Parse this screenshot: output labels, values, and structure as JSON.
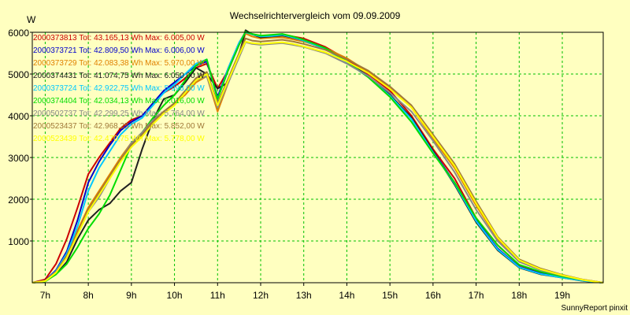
{
  "chart_data": {
    "type": "line",
    "title": "Wechselrichtervergleich vom 09.09.2009",
    "ylabel": "W",
    "xlabel": "",
    "xlim": [
      6.7,
      19.95
    ],
    "ylim": [
      0,
      6000
    ],
    "x_ticks": [
      7,
      8,
      9,
      10,
      11,
      12,
      13,
      14,
      15,
      16,
      17,
      18,
      19
    ],
    "x_tick_labels": [
      "7h",
      "8h",
      "9h",
      "10h",
      "11h",
      "12h",
      "13h",
      "14h",
      "15h",
      "16h",
      "17h",
      "18h",
      "19h"
    ],
    "y_ticks": [
      1000,
      2000,
      3000,
      4000,
      5000,
      6000
    ],
    "y_tick_labels": [
      "1000",
      "2000",
      "3000",
      "4000",
      "5000",
      "6000"
    ],
    "grid": true,
    "legend_position": "top-left",
    "credit": "SunnyReport pinxit",
    "x": [
      6.7,
      7.0,
      7.25,
      7.5,
      7.75,
      8.0,
      8.25,
      8.5,
      8.75,
      9.0,
      9.25,
      9.5,
      9.75,
      10.0,
      10.25,
      10.5,
      10.75,
      11.0,
      11.25,
      11.5,
      11.65,
      11.8,
      12.0,
      12.25,
      12.5,
      12.75,
      13.0,
      13.5,
      14.0,
      14.5,
      15.0,
      15.5,
      16.0,
      16.5,
      17.0,
      17.5,
      18.0,
      18.5,
      19.0,
      19.5,
      19.95
    ],
    "series": [
      {
        "name": "2000373813",
        "label": "2000373813 Tot: 43.165,13 Wh Max: 6.005,00 W",
        "color": "#cc0000",
        "values": [
          0,
          80,
          450,
          1050,
          1800,
          2600,
          3000,
          3350,
          3700,
          3900,
          4000,
          4300,
          4550,
          4700,
          4900,
          5150,
          5250,
          4650,
          5100,
          5700,
          6005,
          5950,
          5900,
          5920,
          5950,
          5900,
          5850,
          5650,
          5350,
          5000,
          4600,
          4000,
          3200,
          2500,
          1550,
          900,
          420,
          250,
          150,
          60,
          0
        ]
      },
      {
        "name": "2000373721",
        "label": "2000373721 Tot: 42.809,50 Wh Max: 6.006,00 W",
        "color": "#0000cc",
        "values": [
          0,
          50,
          300,
          750,
          1500,
          2400,
          2900,
          3300,
          3650,
          3850,
          4000,
          4300,
          4600,
          4800,
          5000,
          5200,
          5300,
          4450,
          5150,
          5750,
          6006,
          5960,
          5900,
          5920,
          5950,
          5880,
          5800,
          5600,
          5300,
          4950,
          4500,
          3950,
          3150,
          2400,
          1500,
          820,
          380,
          220,
          130,
          50,
          0
        ]
      },
      {
        "name": "2000373729",
        "label": "2000373729 Tot: 42.083,38 Wh Max: 5.970,00 W",
        "color": "#e08000",
        "values": [
          0,
          40,
          250,
          650,
          1250,
          1800,
          2200,
          2600,
          3000,
          3350,
          3550,
          3900,
          4100,
          4300,
          4500,
          4800,
          4950,
          4100,
          4800,
          5500,
          5970,
          5900,
          5850,
          5870,
          5880,
          5830,
          5780,
          5620,
          5380,
          5050,
          4650,
          4200,
          3450,
          2750,
          1850,
          1050,
          520,
          320,
          180,
          70,
          0
        ]
      },
      {
        "name": "2000374431",
        "label": "2000374431 Tot: 41.074,75 Wh Max: 6.050,00 W",
        "color": "#202020",
        "values": [
          0,
          40,
          200,
          500,
          1050,
          1500,
          1750,
          1900,
          2200,
          2400,
          3200,
          3900,
          4400,
          4500,
          4800,
          5150,
          5000,
          4650,
          4800,
          5450,
          6050,
          5950,
          5880,
          5900,
          5920,
          5870,
          5800,
          5600,
          5300,
          4950,
          4500,
          3950,
          3150,
          2350,
          1450,
          780,
          360,
          200,
          120,
          40,
          0
        ]
      },
      {
        "name": "2000373724",
        "label": "2000373724 Tot: 42.922,75 Wh Max: 5.998,00 W",
        "color": "#00c8ff",
        "values": [
          0,
          40,
          280,
          700,
          1350,
          2200,
          2750,
          3150,
          3550,
          3800,
          3950,
          4250,
          4550,
          4750,
          5000,
          5250,
          5350,
          4400,
          5150,
          5750,
          5998,
          5950,
          5900,
          5910,
          5940,
          5880,
          5800,
          5600,
          5280,
          4920,
          4480,
          3920,
          3120,
          2380,
          1480,
          800,
          370,
          210,
          120,
          45,
          0
        ]
      },
      {
        "name": "2000374404",
        "label": "2000374404 Tot: 42.034,13 Wh Max: 6.016,00 W",
        "color": "#00dd00",
        "values": [
          0,
          30,
          200,
          450,
          850,
          1300,
          1650,
          2100,
          2700,
          3300,
          3600,
          3950,
          4250,
          4500,
          4850,
          5200,
          5350,
          4400,
          5100,
          5700,
          6016,
          5960,
          5920,
          5940,
          5960,
          5900,
          5820,
          5620,
          5300,
          4920,
          4450,
          3850,
          3100,
          2400,
          1550,
          900,
          430,
          260,
          150,
          60,
          0
        ]
      },
      {
        "name": "2000502737",
        "label": "2000502737 Tot: 42.299,25 Wh Max: 5.764,00 W",
        "color": "#888888",
        "values": [
          0,
          40,
          250,
          600,
          1150,
          1700,
          2050,
          2500,
          2950,
          3350,
          3600,
          3900,
          4100,
          4300,
          4550,
          4850,
          4950,
          4200,
          4800,
          5400,
          5764,
          5720,
          5700,
          5720,
          5740,
          5700,
          5650,
          5500,
          5250,
          4950,
          4550,
          4100,
          3400,
          2650,
          1750,
          1000,
          500,
          300,
          170,
          60,
          0
        ]
      },
      {
        "name": "2000523437",
        "label": "2000523437 Tot: 42.968,25 Wh Max: 5.852,00 W",
        "color": "#a07838",
        "values": [
          0,
          50,
          260,
          650,
          1200,
          1750,
          2150,
          2550,
          2950,
          3300,
          3550,
          3850,
          4100,
          4300,
          4600,
          4900,
          5050,
          4300,
          4900,
          5500,
          5852,
          5800,
          5780,
          5800,
          5820,
          5780,
          5720,
          5580,
          5350,
          5080,
          4700,
          4250,
          3550,
          2850,
          1950,
          1100,
          560,
          340,
          190,
          70,
          0
        ]
      },
      {
        "name": "2000523439",
        "label": "2000523439 Tot: 42.470,75 Wh Max: 5.778,00 W",
        "color": "#ffff00",
        "values": [
          0,
          40,
          240,
          600,
          1150,
          1700,
          2100,
          2500,
          2900,
          3250,
          3500,
          3800,
          4050,
          4250,
          4550,
          4850,
          5000,
          4250,
          4850,
          5450,
          5778,
          5740,
          5720,
          5740,
          5760,
          5720,
          5660,
          5520,
          5300,
          5020,
          4640,
          4200,
          3500,
          2800,
          1900,
          1080,
          540,
          320,
          180,
          65,
          0
        ]
      }
    ]
  }
}
